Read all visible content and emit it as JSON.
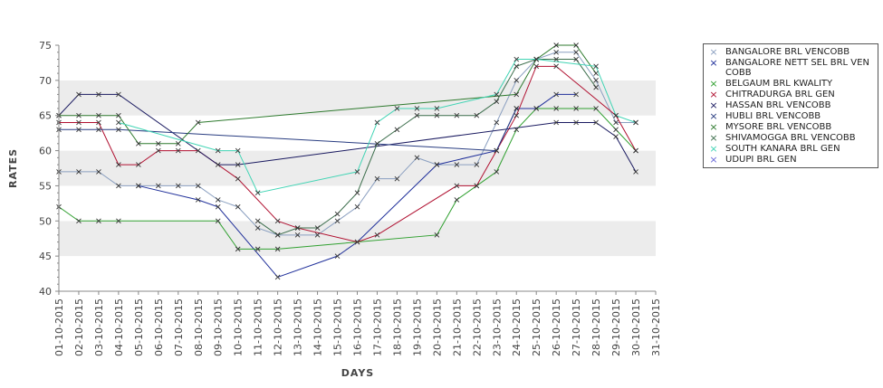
{
  "chart_data": {
    "type": "line",
    "xlabel": "DAYS",
    "ylabel": "RATES",
    "ylim": [
      40,
      75
    ],
    "yticks": [
      40,
      45,
      50,
      55,
      60,
      65,
      70,
      75
    ],
    "grid": "alternating horizontal bands",
    "legend_position": "right",
    "categories": [
      "01-10-2015",
      "02-10-2015",
      "03-10-2015",
      "04-10-2015",
      "05-10-2015",
      "06-10-2015",
      "07-10-2015",
      "08-10-2015",
      "09-10-2015",
      "10-10-2015",
      "11-10-2015",
      "12-10-2015",
      "13-10-2015",
      "14-10-2015",
      "15-10-2015",
      "16-10-2015",
      "17-10-2015",
      "18-10-2015",
      "19-10-2015",
      "20-10-2015",
      "21-10-2015",
      "22-10-2015",
      "23-10-2015",
      "24-10-2015",
      "25-10-2015",
      "26-10-2015",
      "27-10-2015",
      "28-10-2015",
      "29-10-2015",
      "30-10-2015",
      "31-10-2015"
    ],
    "series": [
      {
        "name": "BANGALORE BRL VENCOBB",
        "color": "#8a9fc0",
        "values": [
          57,
          57,
          57,
          55,
          55,
          55,
          55,
          55,
          53,
          52,
          49,
          48,
          48,
          48,
          50,
          52,
          56,
          56,
          59,
          58,
          58,
          58,
          64,
          70,
          73,
          74,
          74,
          70,
          64,
          64,
          null
        ]
      },
      {
        "name": "BANGALORE NETT SEL BRL VENCOBB",
        "color": "#1f2f9a",
        "values": [
          null,
          null,
          null,
          null,
          55,
          null,
          null,
          53,
          52,
          null,
          null,
          42,
          null,
          null,
          45,
          47,
          null,
          null,
          null,
          58,
          null,
          null,
          60,
          66,
          66,
          68,
          68,
          null,
          null,
          null,
          null
        ]
      },
      {
        "name": "BELGAUM BRL KWALITY",
        "color": "#30a030",
        "values": [
          52,
          50,
          50,
          50,
          null,
          null,
          null,
          null,
          50,
          46,
          46,
          46,
          null,
          null,
          null,
          null,
          null,
          null,
          null,
          48,
          53,
          55,
          57,
          63,
          66,
          66,
          66,
          66,
          63,
          60,
          null
        ]
      },
      {
        "name": "CHITRADURGA BRL GEN",
        "color": "#b01030",
        "values": [
          64,
          64,
          64,
          58,
          58,
          60,
          60,
          60,
          null,
          56,
          null,
          50,
          49,
          null,
          null,
          47,
          48,
          null,
          null,
          null,
          55,
          55,
          60,
          65,
          72,
          72,
          null,
          null,
          65,
          60,
          null
        ]
      },
      {
        "name": "HASSAN BRL VENCOBB",
        "color": "#1a1a60",
        "values": [
          65,
          68,
          68,
          68,
          null,
          null,
          null,
          null,
          58,
          58,
          null,
          null,
          null,
          null,
          null,
          null,
          null,
          null,
          null,
          null,
          null,
          null,
          null,
          null,
          null,
          64,
          64,
          64,
          62,
          57,
          null
        ]
      },
      {
        "name": "HUBLI BRL VENCOBB",
        "color": "#283c80",
        "values": [
          63,
          63,
          63,
          63,
          null,
          null,
          null,
          null,
          null,
          null,
          null,
          null,
          null,
          null,
          null,
          null,
          null,
          null,
          null,
          null,
          null,
          null,
          60,
          66,
          null,
          null,
          null,
          null,
          null,
          null,
          null
        ]
      },
      {
        "name": "MYSORE BRL VENCOBB",
        "color": "#2e7a2e",
        "values": [
          65,
          65,
          65,
          65,
          61,
          61,
          61,
          64,
          null,
          null,
          null,
          null,
          null,
          null,
          null,
          null,
          null,
          null,
          null,
          null,
          null,
          null,
          null,
          68,
          73,
          75,
          75,
          71,
          null,
          null,
          null
        ]
      },
      {
        "name": "SHIVAMOGGA BRL VENCOBB",
        "color": "#3c6e4c",
        "values": [
          null,
          null,
          null,
          null,
          null,
          null,
          null,
          null,
          null,
          null,
          50,
          48,
          49,
          49,
          51,
          54,
          61,
          63,
          65,
          65,
          65,
          65,
          67,
          72,
          73,
          73,
          73,
          69,
          null,
          null,
          null
        ]
      },
      {
        "name": "SOUTH KANARA BRL GEN",
        "color": "#40d4b4",
        "values": [
          null,
          null,
          null,
          64,
          null,
          null,
          null,
          null,
          60,
          60,
          54,
          null,
          null,
          null,
          null,
          57,
          64,
          66,
          66,
          66,
          null,
          null,
          68,
          73,
          73,
          null,
          null,
          72,
          65,
          64,
          null
        ]
      },
      {
        "name": "UDUPI BRL GEN",
        "color": "#6868d8",
        "values": [
          null,
          null,
          null,
          null,
          null,
          null,
          null,
          null,
          null,
          null,
          null,
          null,
          null,
          null,
          null,
          null,
          null,
          null,
          null,
          null,
          null,
          null,
          null,
          null,
          null,
          null,
          null,
          null,
          null,
          null,
          null
        ]
      }
    ]
  }
}
